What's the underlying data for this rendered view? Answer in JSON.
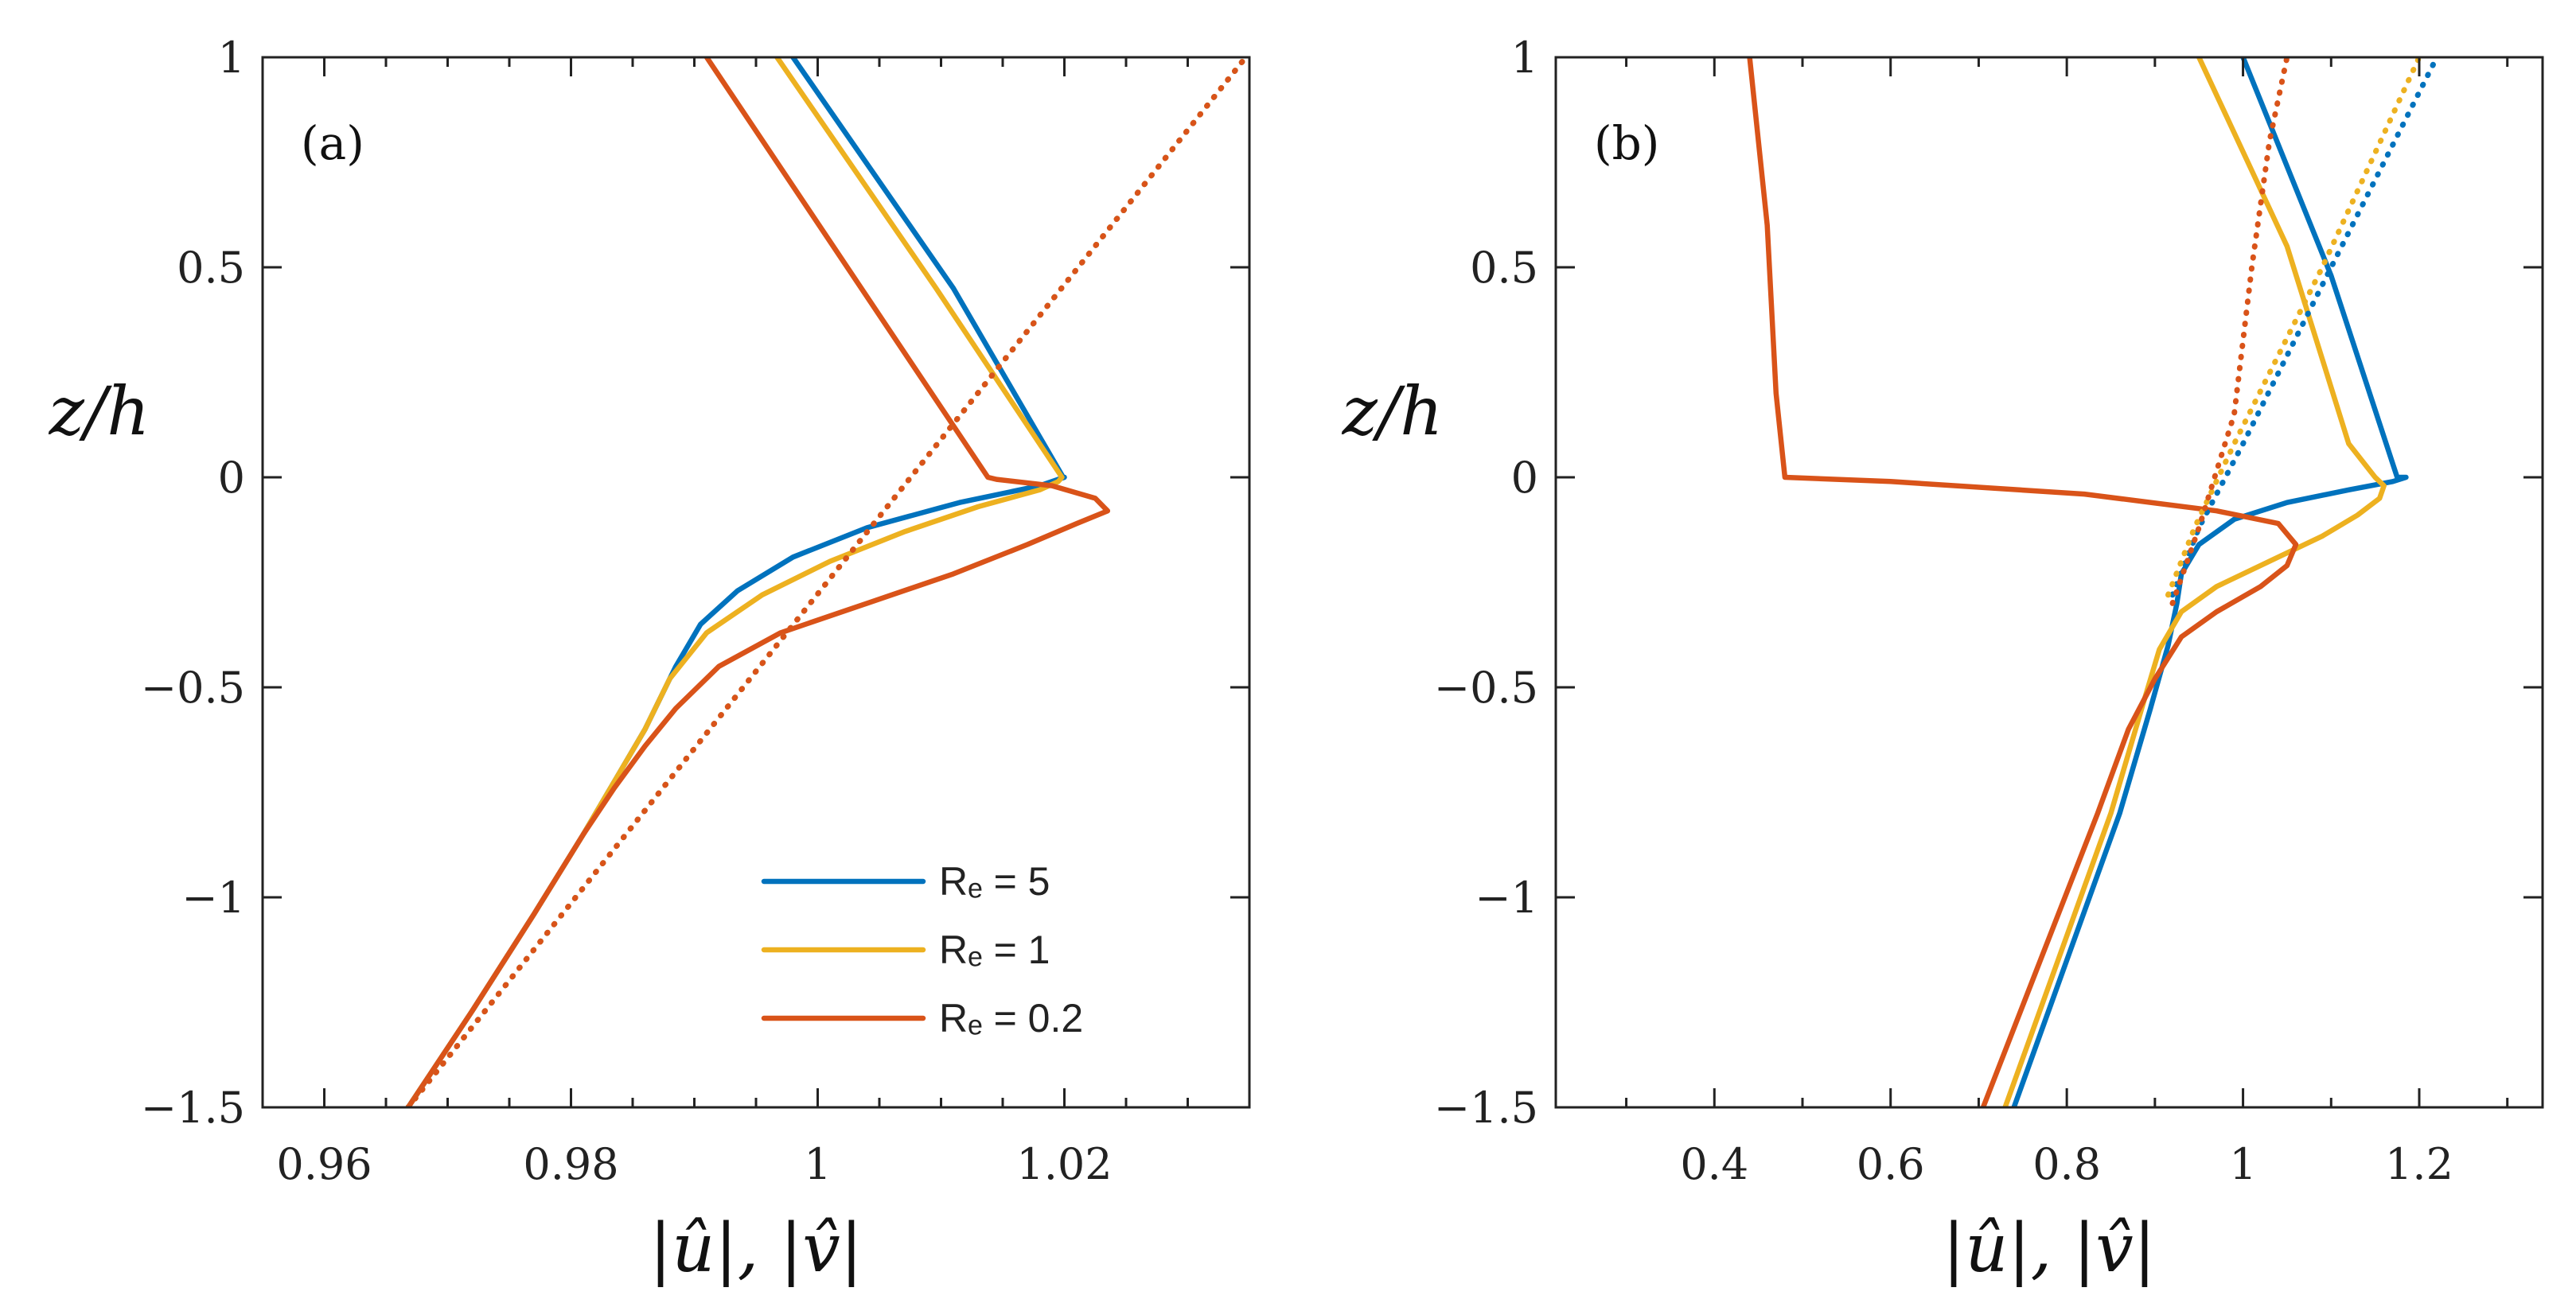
{
  "chart_data": [
    {
      "type": "line",
      "panel_label": "(a)",
      "xlabel": "|û|, |v̂|",
      "ylabel": "z/h",
      "xlim": [
        0.955,
        1.035
      ],
      "ylim": [
        -1.5,
        1
      ],
      "xticks": [
        0.96,
        0.98,
        1,
        1.02
      ],
      "xtick_labels": [
        "0.96",
        "0.98",
        "1",
        "1.02"
      ],
      "xminor": [
        0.955,
        0.965,
        0.97,
        0.975,
        0.985,
        0.99,
        0.995,
        1.005,
        1.01,
        1.015,
        1.025,
        1.03
      ],
      "yticks": [
        -1.5,
        -1,
        -0.5,
        0,
        0.5,
        1
      ],
      "ytick_labels": [
        "−1.5",
        "−1",
        "−0.5",
        "0",
        "0.5",
        "1"
      ],
      "series": [
        {
          "name": "R_e = 5",
          "style": "solid",
          "color": "#0072BD",
          "x": [
            0.9668,
            0.972,
            0.977,
            0.981,
            0.984,
            0.986,
            0.9885,
            0.9905,
            0.9935,
            0.998,
            1.004,
            1.0115,
            1.018,
            1.02,
            1.0199,
            1.011,
            0.998
          ],
          "y": [
            -1.5,
            -1.27,
            -1.04,
            -0.85,
            -0.7,
            -0.6,
            -0.45,
            -0.35,
            -0.27,
            -0.19,
            -0.12,
            -0.06,
            -0.02,
            0.0,
            0.0,
            0.45,
            1.0
          ]
        },
        {
          "name": "R_e = 1",
          "style": "solid",
          "color": "#EDB120",
          "x": [
            0.9668,
            0.972,
            0.977,
            0.981,
            0.984,
            0.986,
            0.988,
            0.991,
            0.9955,
            1.001,
            1.007,
            1.013,
            1.018,
            1.0195,
            1.0198,
            1.0096,
            0.9967
          ],
          "y": [
            -1.5,
            -1.27,
            -1.04,
            -0.85,
            -0.7,
            -0.6,
            -0.48,
            -0.37,
            -0.28,
            -0.2,
            -0.13,
            -0.07,
            -0.03,
            -0.01,
            0.0,
            0.45,
            1.0
          ]
        },
        {
          "name": "R_e = 0.2",
          "style": "solid",
          "color": "#D95319",
          "x": [
            0.9668,
            0.972,
            0.977,
            0.981,
            0.9835,
            0.986,
            0.9885,
            0.992,
            0.997,
            1.004,
            1.011,
            1.017,
            1.021,
            1.0235,
            1.0225,
            1.019,
            1.0145,
            1.0138,
            0.991
          ],
          "y": [
            -1.5,
            -1.27,
            -1.04,
            -0.85,
            -0.74,
            -0.64,
            -0.55,
            -0.45,
            -0.37,
            -0.3,
            -0.23,
            -0.16,
            -0.11,
            -0.08,
            -0.05,
            -0.02,
            -0.005,
            0.0,
            1.0
          ]
        },
        {
          "name": "R_e = 5 (dotted)",
          "style": "dotted",
          "color": "#0072BD",
          "x": [
            0.9668,
            1.0347
          ],
          "y": [
            -1.5,
            1.0
          ]
        },
        {
          "name": "R_e = 1 (dotted)",
          "style": "dotted",
          "color": "#EDB120",
          "x": [
            0.9668,
            1.0347
          ],
          "y": [
            -1.5,
            1.0
          ]
        },
        {
          "name": "R_e = 0.2 (dotted)",
          "style": "dotted",
          "color": "#D95319",
          "x": [
            0.9668,
            1.0347
          ],
          "y": [
            -1.5,
            1.0
          ]
        }
      ],
      "legend": {
        "location": "bottom-right",
        "entries": [
          {
            "label": "Rₑ = 5",
            "color": "#0072BD"
          },
          {
            "label": "Rₑ = 1",
            "color": "#EDB120"
          },
          {
            "label": "Rₑ = 0.2",
            "color": "#D95319"
          }
        ]
      }
    },
    {
      "type": "line",
      "panel_label": "(b)",
      "xlabel": "|û|, |v̂|",
      "ylabel": "z/h",
      "xlim": [
        0.22,
        1.34
      ],
      "ylim": [
        -1.5,
        1
      ],
      "xticks": [
        0.4,
        0.6,
        0.8,
        1,
        1.2
      ],
      "xtick_labels": [
        "0.4",
        "0.6",
        "0.8",
        "1",
        "1.2"
      ],
      "xminor": [
        0.3,
        0.5,
        0.7,
        0.9,
        1.1,
        1.3
      ],
      "yticks": [
        -1.5,
        -1,
        -0.5,
        0,
        0.5,
        1
      ],
      "ytick_labels": [
        "−1.5",
        "−1",
        "−0.5",
        "0",
        "0.5",
        "1"
      ],
      "series": [
        {
          "name": "R_e = 5",
          "style": "solid",
          "color": "#0072BD",
          "x": [
            0.74,
            0.8,
            0.86,
            0.895,
            0.915,
            0.925,
            0.93,
            0.95,
            0.99,
            1.05,
            1.12,
            1.17,
            1.185,
            1.175,
            1.1,
            1.0
          ],
          "y": [
            -1.5,
            -1.15,
            -0.8,
            -0.55,
            -0.4,
            -0.3,
            -0.23,
            -0.16,
            -0.1,
            -0.06,
            -0.03,
            -0.01,
            0.0,
            0.0,
            0.48,
            1.0
          ]
        },
        {
          "name": "R_e = 1",
          "style": "solid",
          "color": "#EDB120",
          "x": [
            0.73,
            0.79,
            0.85,
            0.885,
            0.905,
            0.93,
            0.97,
            1.03,
            1.09,
            1.13,
            1.155,
            1.16,
            1.15,
            1.12,
            1.05,
            0.95
          ],
          "y": [
            -1.5,
            -1.15,
            -0.8,
            -0.55,
            -0.41,
            -0.32,
            -0.26,
            -0.2,
            -0.14,
            -0.09,
            -0.05,
            -0.02,
            0.0,
            0.08,
            0.55,
            1.0
          ]
        },
        {
          "name": "R_e = 0.2",
          "style": "solid",
          "color": "#D95319",
          "x": [
            0.705,
            0.77,
            0.835,
            0.87,
            0.9,
            0.93,
            0.97,
            1.02,
            1.05,
            1.06,
            1.04,
            0.97,
            0.82,
            0.6,
            0.48,
            0.47,
            0.46,
            0.44
          ],
          "y": [
            -1.5,
            -1.15,
            -0.8,
            -0.6,
            -0.48,
            -0.38,
            -0.32,
            -0.26,
            -0.21,
            -0.16,
            -0.11,
            -0.08,
            -0.04,
            -0.01,
            0.0,
            0.2,
            0.6,
            1.0
          ]
        },
        {
          "name": "R_e = 5 (dotted)",
          "style": "dotted",
          "color": "#0072BD",
          "x": [
            0.92,
            0.95,
            1.0,
            1.1,
            1.22
          ],
          "y": [
            -0.28,
            -0.12,
            0.08,
            0.5,
            1.0
          ]
        },
        {
          "name": "R_e = 1 (dotted)",
          "style": "dotted",
          "color": "#EDB120",
          "x": [
            0.915,
            0.945,
            0.99,
            1.09,
            1.2
          ],
          "y": [
            -0.28,
            -0.12,
            0.08,
            0.5,
            1.0
          ]
        },
        {
          "name": "R_e = 0.2 (dotted)",
          "style": "dotted",
          "color": "#D95319",
          "x": [
            0.92,
            0.95,
            0.99,
            1.01,
            1.03,
            1.05
          ],
          "y": [
            -0.3,
            -0.12,
            0.15,
            0.5,
            0.8,
            1.0
          ]
        }
      ]
    }
  ]
}
